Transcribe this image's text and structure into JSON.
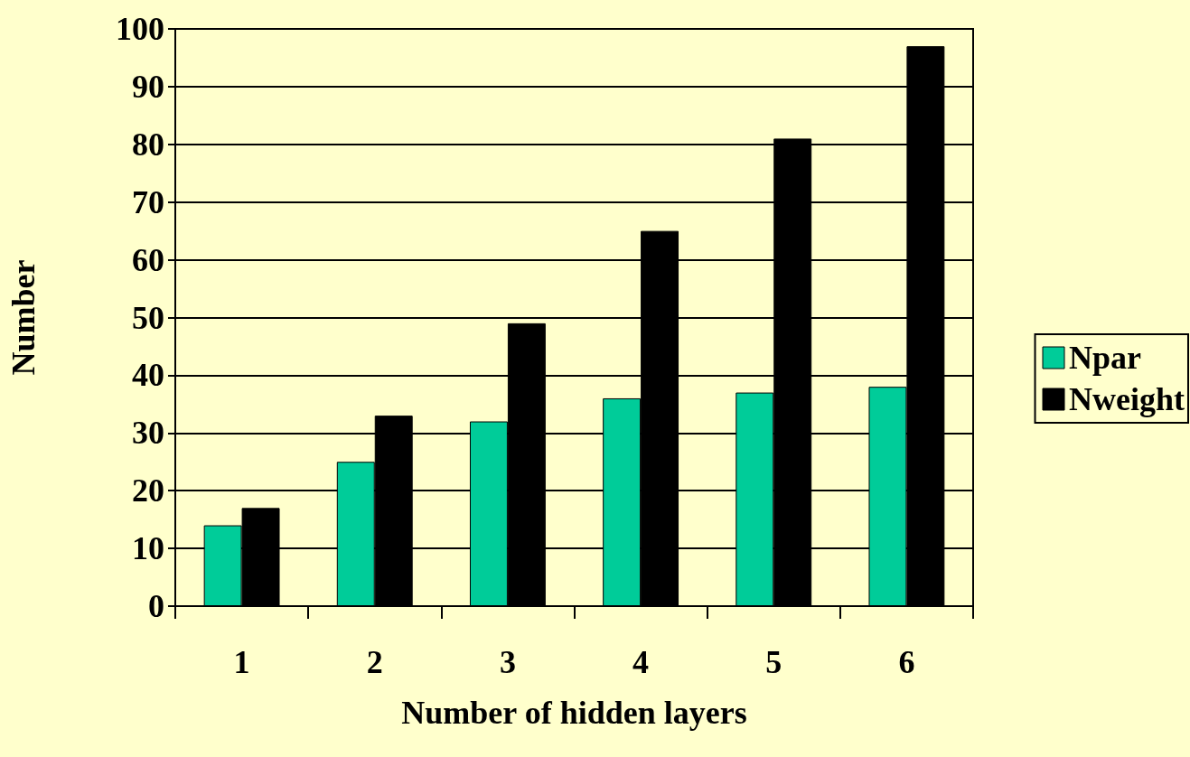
{
  "chart_data": {
    "type": "bar",
    "xlabel": "Number of hidden layers",
    "ylabel": "Number",
    "categories": [
      "1",
      "2",
      "3",
      "4",
      "5",
      "6"
    ],
    "series": [
      {
        "name": "Npar",
        "color": "#00cc99",
        "values": [
          14,
          25,
          32,
          36,
          37,
          38
        ]
      },
      {
        "name": "Nweight",
        "color": "#000000",
        "values": [
          17,
          33,
          49,
          65,
          81,
          97
        ]
      }
    ],
    "ylim": [
      0,
      100
    ],
    "yticks": [
      0,
      10,
      20,
      30,
      40,
      50,
      60,
      70,
      80,
      90,
      100
    ],
    "grid": "y",
    "legend": "right"
  }
}
